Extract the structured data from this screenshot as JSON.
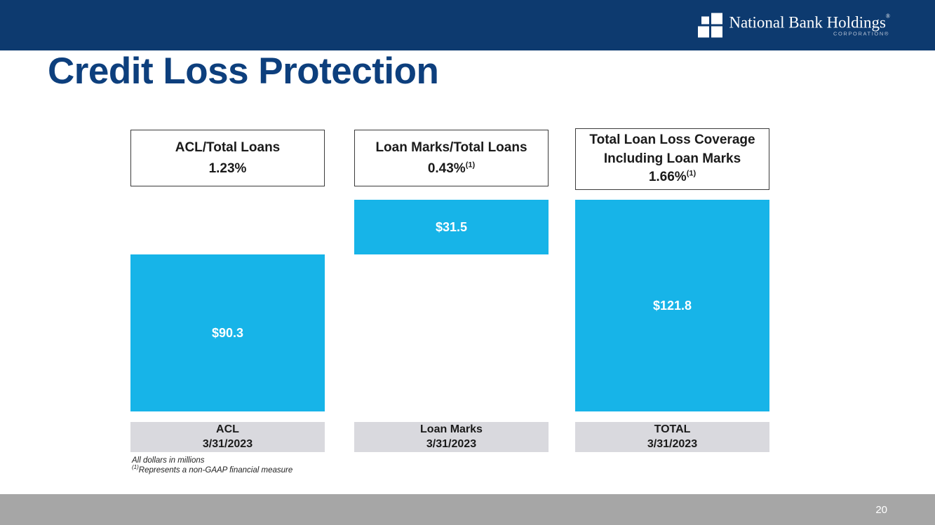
{
  "header": {
    "company_name": "National Bank Holdings",
    "registered_mark": "®",
    "corporation_label": "CORPORATION®"
  },
  "title": "Credit Loss Protection",
  "columns": [
    {
      "header_line1": "ACL/Total Loans",
      "percent": "1.23%",
      "superscript": "",
      "bar_value": "$90.3",
      "footer_line1": "ACL",
      "footer_line2": "3/31/2023"
    },
    {
      "header_line1": "Loan Marks/Total Loans",
      "percent": "0.43%",
      "superscript": "(1)",
      "bar_value": "$31.5",
      "footer_line1": "Loan Marks",
      "footer_line2": "3/31/2023"
    },
    {
      "header_line1": "Total Loan Loss Coverage",
      "header_line2": "Including Loan Marks",
      "percent": "1.66%",
      "superscript": "(1)",
      "bar_value": "$121.8",
      "footer_line1": "TOTAL",
      "footer_line2": "3/31/2023"
    }
  ],
  "footnotes": [
    "All dollars in millions",
    "Represents a non-GAAP financial measure"
  ],
  "footnote_superscript": "(1)",
  "page_number": "20",
  "colors": {
    "navy": "#0d3a6f",
    "title_navy": "#0d3f7d",
    "bar_blue": "#17b4e8",
    "label_gray": "#d9d9de",
    "footer_gray": "#a6a6a6"
  },
  "chart_data": {
    "type": "bar",
    "title": "Credit Loss Protection",
    "units": "$ millions",
    "categories": [
      "ACL 3/31/2023",
      "Loan Marks 3/31/2023",
      "TOTAL 3/31/2023"
    ],
    "values": [
      90.3,
      31.5,
      121.8
    ],
    "value_labels": [
      "$90.3",
      "$31.5",
      "$121.8"
    ],
    "ratio_labels": [
      "ACL/Total Loans 1.23%",
      "Loan Marks/Total Loans 0.43%",
      "Total Loan Loss Coverage Including Loan Marks 1.66%"
    ],
    "legend_position": "none",
    "grid": false,
    "notes": "TOTAL bar equals the stacked sum of ACL and Loan Marks; the Loan Marks bar is drawn at the top, aligned with the top of the TOTAL stack; all bars share a common baseline"
  }
}
